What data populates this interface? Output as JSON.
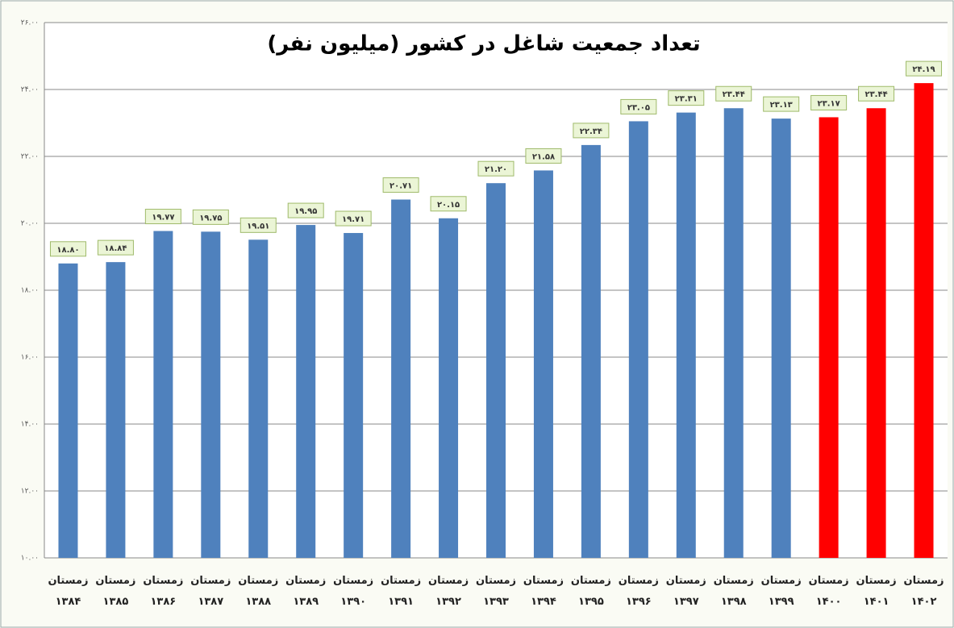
{
  "chart_data": {
    "type": "bar",
    "title": "تعداد جمعیت شاغل در کشور (میلیون نفر)",
    "categories": [
      "زمستان ۱۳۸۴",
      "زمستان ۱۳۸۵",
      "زمستان ۱۳۸۶",
      "زمستان ۱۳۸۷",
      "زمستان ۱۳۸۸",
      "زمستان ۱۳۸۹",
      "زمستان ۱۳۹۰",
      "زمستان ۱۳۹۱",
      "زمستان ۱۳۹۲",
      "زمستان ۱۳۹۳",
      "زمستان ۱۳۹۴",
      "زمستان ۱۳۹۵",
      "زمستان ۱۳۹۶",
      "زمستان ۱۳۹۷",
      "زمستان ۱۳۹۸",
      "زمستان ۱۳۹۹",
      "زمستان ۱۴۰۰",
      "زمستان ۱۴۰۱",
      "زمستان ۱۴۰۲"
    ],
    "values": [
      18.8,
      18.84,
      19.77,
      19.75,
      19.51,
      19.95,
      19.71,
      20.71,
      20.15,
      21.2,
      21.58,
      22.34,
      23.05,
      23.31,
      23.44,
      23.13,
      23.17,
      23.44,
      24.19
    ],
    "value_labels": [
      "۱۸.۸۰",
      "۱۸.۸۴",
      "۱۹.۷۷",
      "۱۹.۷۵",
      "۱۹.۵۱",
      "۱۹.۹۵",
      "۱۹.۷۱",
      "۲۰.۷۱",
      "۲۰.۱۵",
      "۲۱.۲۰",
      "۲۱.۵۸",
      "۲۲.۳۴",
      "۲۳.۰۵",
      "۲۳.۳۱",
      "۲۳.۴۴",
      "۲۳.۱۳",
      "۲۳.۱۷",
      "۲۳.۴۴",
      "۲۴.۱۹"
    ],
    "colors": [
      "#4f81bd",
      "#4f81bd",
      "#4f81bd",
      "#4f81bd",
      "#4f81bd",
      "#4f81bd",
      "#4f81bd",
      "#4f81bd",
      "#4f81bd",
      "#4f81bd",
      "#4f81bd",
      "#4f81bd",
      "#4f81bd",
      "#4f81bd",
      "#4f81bd",
      "#4f81bd",
      "#ff0000",
      "#ff0000",
      "#ff0000"
    ],
    "ylim": [
      10,
      26
    ],
    "yticks": [
      {
        "value": 10,
        "label": "۱۰.۰۰"
      },
      {
        "value": 12,
        "label": "۱۲.۰۰"
      },
      {
        "value": 14,
        "label": "۱۴.۰۰"
      },
      {
        "value": 16,
        "label": "۱۶.۰۰"
      },
      {
        "value": 18,
        "label": "۱۸.۰۰"
      },
      {
        "value": 20,
        "label": "۲۰.۰۰"
      },
      {
        "value": 22,
        "label": "۲۲.۰۰"
      },
      {
        "value": 24,
        "label": "۲۴.۰۰"
      },
      {
        "value": 26,
        "label": "۲۶.۰۰"
      }
    ],
    "grid": true
  }
}
